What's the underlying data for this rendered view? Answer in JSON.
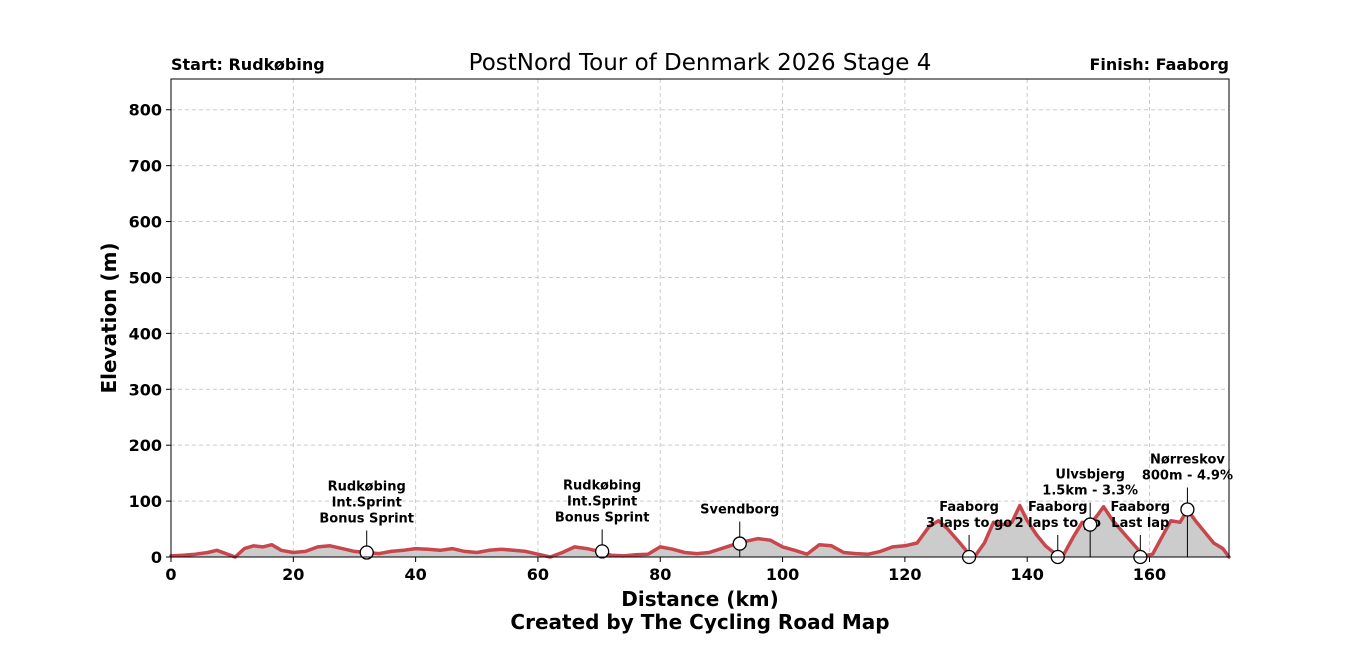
{
  "chart_data": {
    "type": "area",
    "title": "PostNord Tour of Denmark 2026 Stage 4",
    "start_label": "Start: Rudkøbing",
    "finish_label": "Finish: Faaborg",
    "xlabel": "Distance (km)",
    "ylabel": "Elevation (m)",
    "credit": "Created by The Cycling Road Map",
    "xlim": [
      0,
      173
    ],
    "ylim": [
      0,
      855
    ],
    "xticks": [
      0,
      20,
      40,
      60,
      80,
      100,
      120,
      140,
      160
    ],
    "yticks": [
      0,
      100,
      200,
      300,
      400,
      500,
      600,
      700,
      800
    ],
    "grid": true,
    "colors": {
      "line": "#c8474d",
      "fill": "#cccccc",
      "grid": "#cccccc",
      "marker_edge": "#000000",
      "marker_fill": "#ffffff"
    },
    "profile": {
      "x": [
        0,
        2,
        4,
        6,
        7.5,
        9,
        10.5,
        12,
        13.5,
        15,
        16.5,
        18,
        20,
        22,
        24,
        26,
        28,
        30,
        32,
        34,
        36,
        38,
        40,
        42,
        44,
        46,
        48,
        50,
        52,
        54,
        56,
        58,
        60,
        62,
        64,
        66,
        68,
        70,
        72,
        74,
        76,
        78,
        80,
        82,
        84,
        86,
        88,
        90,
        92,
        94,
        96,
        98,
        100,
        102,
        104,
        106,
        108,
        110,
        112,
        114,
        116,
        118,
        120,
        122,
        124,
        125.5,
        127,
        129,
        130.5,
        131.5,
        133,
        134.5,
        136,
        137.5,
        138.8,
        140,
        141.5,
        143,
        145,
        146,
        147.5,
        149,
        150.3,
        151.5,
        152.5,
        154,
        156,
        158,
        159,
        160.5,
        162,
        163.5,
        165,
        166.2,
        167.5,
        169,
        170.5,
        172,
        173
      ],
      "elevation": [
        2,
        3,
        5,
        8,
        12,
        6,
        0,
        15,
        20,
        18,
        22,
        12,
        8,
        10,
        18,
        20,
        15,
        10,
        8,
        6,
        10,
        12,
        15,
        14,
        12,
        15,
        10,
        8,
        12,
        14,
        12,
        10,
        5,
        0,
        8,
        18,
        15,
        10,
        3,
        2,
        4,
        5,
        18,
        14,
        8,
        6,
        8,
        15,
        22,
        28,
        33,
        30,
        18,
        12,
        5,
        22,
        20,
        8,
        6,
        5,
        10,
        18,
        20,
        25,
        55,
        65,
        50,
        25,
        5,
        2,
        25,
        62,
        58,
        62,
        92,
        65,
        40,
        20,
        2,
        5,
        35,
        62,
        58,
        75,
        90,
        65,
        40,
        15,
        2,
        5,
        35,
        65,
        62,
        85,
        65,
        45,
        25,
        15,
        0
      ]
    },
    "markers": [
      {
        "x": 32,
        "y": 8,
        "label_lines": [
          "Rudkøbing",
          "Int.Sprint",
          "Bonus Sprint"
        ]
      },
      {
        "x": 70.5,
        "y": 10,
        "label_lines": [
          "Rudkøbing",
          "Int.Sprint",
          "Bonus Sprint"
        ]
      },
      {
        "x": 93,
        "y": 24,
        "label_lines": [
          "Svendborg"
        ]
      },
      {
        "x": 130.5,
        "y": 0,
        "label_lines": [
          "Faaborg",
          "3 laps to go"
        ]
      },
      {
        "x": 145,
        "y": 0,
        "label_lines": [
          "Faaborg",
          "2 laps to go"
        ]
      },
      {
        "x": 150.3,
        "y": 58,
        "label_lines": [
          "Ulvsbjerg",
          "1.5km - 3.3%"
        ]
      },
      {
        "x": 158.5,
        "y": 0,
        "label_lines": [
          "Faaborg",
          "Last lap"
        ]
      },
      {
        "x": 166.2,
        "y": 85,
        "label_lines": [
          "Nørreskov",
          "800m - 4.9%"
        ]
      }
    ]
  }
}
